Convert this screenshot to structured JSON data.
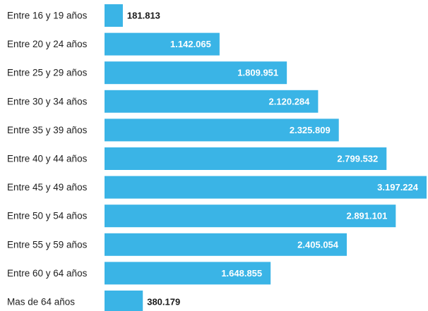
{
  "chart_data": {
    "type": "bar",
    "orientation": "horizontal",
    "title": "",
    "xlabel": "",
    "ylabel": "",
    "grid": false,
    "xlim": [
      0,
      3197224
    ],
    "bar_color": "#3ab4e6",
    "label_color_inside": "#ffffff",
    "label_color_outside": "#1a1a1a",
    "categories": [
      "Entre 16 y 19 años",
      "Entre 20 y 24 años",
      "Entre 25 y 29 años",
      "Entre 30 y 34 años",
      "Entre 35 y 39 años",
      "Entre 40 y 44 años",
      "Entre 45 y 49 años",
      "Entre 50 y 54 años",
      "Entre 55 y 59 años",
      "Entre 60 y 64 años",
      "Mas de 64 años"
    ],
    "values": [
      181813,
      1142065,
      1809951,
      2120284,
      2325809,
      2799532,
      3197224,
      2891101,
      2405054,
      1648855,
      380179
    ],
    "value_labels": [
      "181.813",
      "1.142.065",
      "1.809.951",
      "2.120.284",
      "2.325.809",
      "2.799.532",
      "3.197.224",
      "2.891.101",
      "2.405.054",
      "1.648.855",
      "380.179"
    ]
  }
}
